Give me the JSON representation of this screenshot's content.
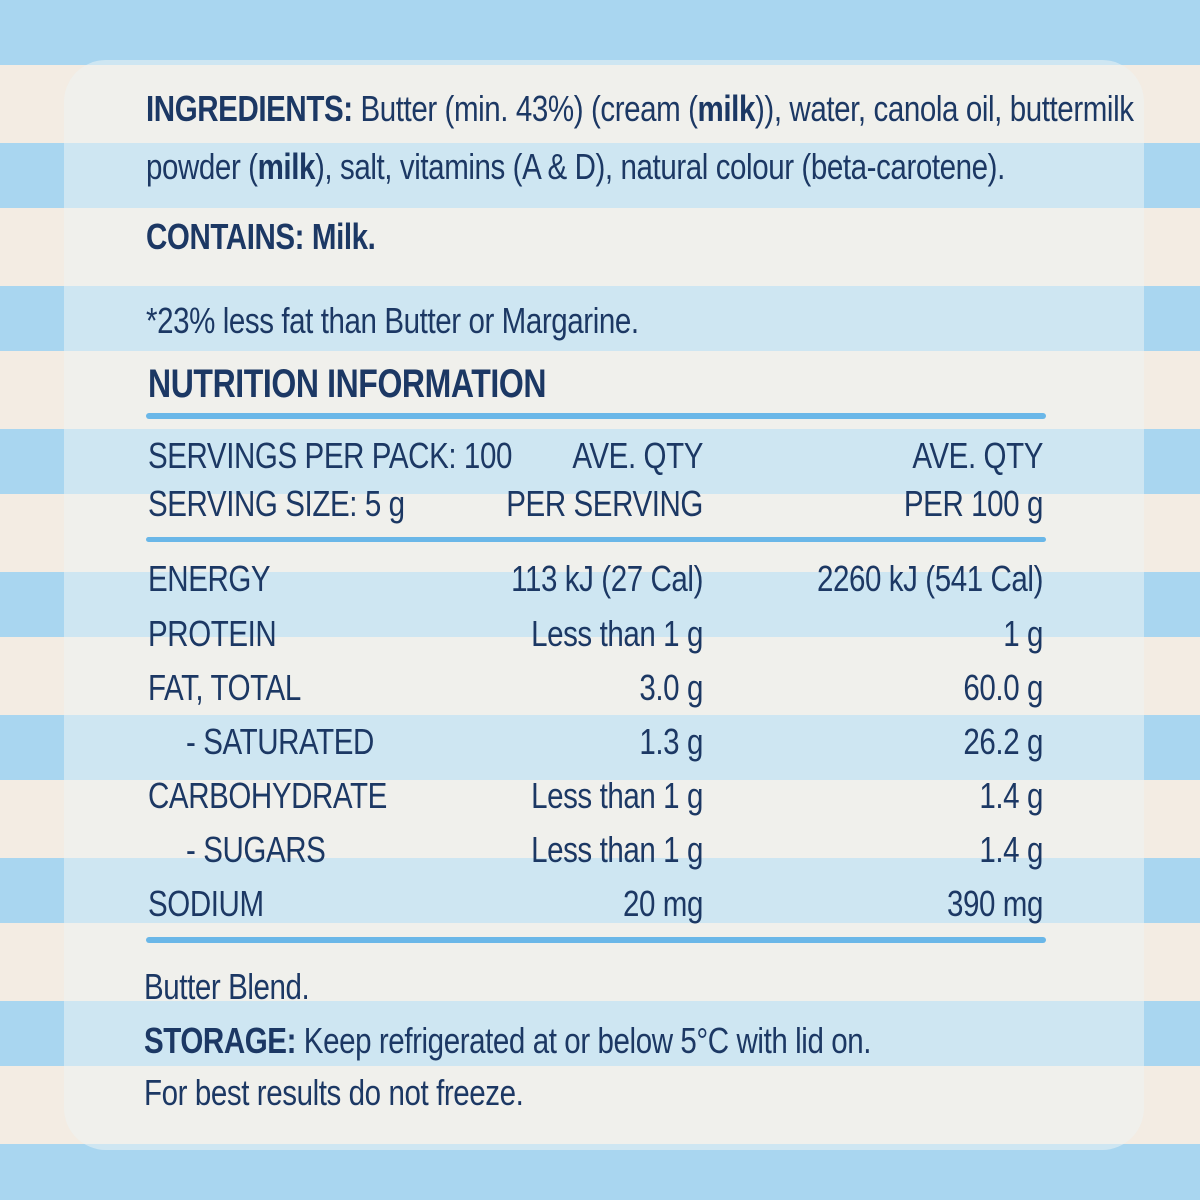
{
  "ingredients": {
    "label": "INGREDIENTS:",
    "line1_a": "Butter (min. 43%) (cream (",
    "line1_b": "milk",
    "line1_c": ")), water, canola oil, buttermilk",
    "line2_a": "powder (",
    "line2_b": "milk",
    "line2_c": "), salt, vitamins (A & D), natural colour (beta-carotene)."
  },
  "contains": "CONTAINS: Milk.",
  "footnote": "*23% less fat than Butter or Margarine.",
  "nutrition": {
    "title": "NUTRITION INFORMATION",
    "servings_per_pack": "SERVINGS PER PACK: 100",
    "serving_size": "SERVING SIZE: 5 g",
    "col_serving_line1": "AVE. QTY",
    "col_serving_line2": "PER SERVING",
    "col_100g_line1": "AVE. QTY",
    "col_100g_line2": "PER 100 g",
    "rows": [
      {
        "name": "ENERGY",
        "per_serving": "113 kJ (27 Cal)",
        "per_100g": "2260 kJ (541 Cal)"
      },
      {
        "name": "PROTEIN",
        "per_serving": "Less than 1 g",
        "per_100g": "1 g"
      },
      {
        "name": "FAT, TOTAL",
        "per_serving": "3.0 g",
        "per_100g": "60.0 g"
      },
      {
        "name": "- SATURATED",
        "per_serving": "1.3 g",
        "per_100g": "26.2 g"
      },
      {
        "name": "CARBOHYDRATE",
        "per_serving": "Less than 1 g",
        "per_100g": "1.4 g"
      },
      {
        "name": "- SUGARS",
        "per_serving": "Less than 1 g",
        "per_100g": "1.4 g"
      },
      {
        "name": "SODIUM",
        "per_serving": "20 mg",
        "per_100g": "390 mg"
      }
    ]
  },
  "product_name": "Butter Blend.",
  "storage": {
    "label": "STORAGE:",
    "text": "Keep refrigerated at or below 5°C with lid on.",
    "note": "For best results do not freeze."
  }
}
